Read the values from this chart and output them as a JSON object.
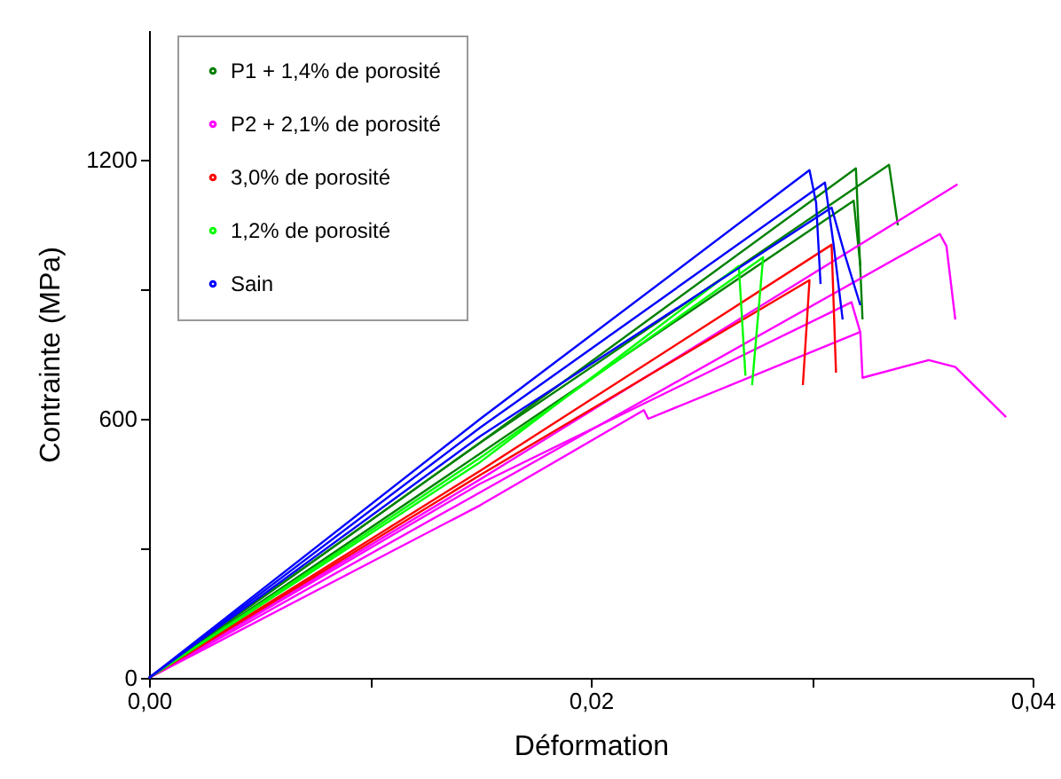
{
  "chart_data": {
    "type": "line",
    "xlabel": "Déformation",
    "ylabel": "Contrainte (MPa)",
    "xlim": [
      0,
      0.04
    ],
    "ylim": [
      0,
      1500
    ],
    "xticks": [
      {
        "value": 0,
        "label": "0,00"
      },
      {
        "value": 0.01,
        "label": null
      },
      {
        "value": 0.02,
        "label": "0,02"
      },
      {
        "value": 0.03,
        "label": null
      },
      {
        "value": 0.04,
        "label": "0,04"
      }
    ],
    "yticks": [
      0,
      {
        "value": 300,
        "label": null
      },
      600,
      {
        "value": 900,
        "label": null
      },
      1200
    ],
    "legend": "top left",
    "grid": false,
    "series": [
      {
        "name": "P1 + 1,4% de porosité",
        "color": "#008000",
        "x": [
          0,
          0.015,
          0.0335,
          0.0339
        ],
        "values": [
          0,
          545,
          1188,
          1048
        ]
      },
      {
        "color": "#008000",
        "x": [
          0,
          0.015,
          0.032,
          0.0323
        ],
        "values": [
          0,
          545,
          1180,
          830
        ]
      },
      {
        "color": "#008000",
        "x": [
          0,
          0.015,
          0.0319,
          0.0322
        ],
        "values": [
          0,
          520,
          1105,
          954
        ]
      },
      {
        "name": "P2 + 2,1% de porosité",
        "color": "#ff00ff",
        "x": [
          0,
          0.015,
          0.0366
        ],
        "values": [
          0,
          460,
          1143
        ]
      },
      {
        "color": "#ff00ff",
        "x": [
          0,
          0.015,
          0.0358,
          0.0361,
          0.0365
        ],
        "values": [
          0,
          430,
          1028,
          1000,
          830
        ]
      },
      {
        "color": "#ff00ff",
        "x": [
          0,
          0.015,
          0.0318,
          0.0322,
          0.0323,
          0.0353,
          0.0365,
          0.0388
        ],
        "values": [
          0,
          450,
          870,
          800,
          695,
          736,
          720,
          604
        ]
      },
      {
        "color": "#ff00ff",
        "x": [
          0,
          0.015,
          0.0224,
          0.0226,
          0.0322
        ],
        "values": [
          0,
          400,
          620,
          600,
          801
        ]
      },
      {
        "name": "3,0% de porosité",
        "color": "#ff0000",
        "x": [
          0,
          0.015,
          0.0309,
          0.0311
        ],
        "values": [
          0,
          480,
          1003,
          707
        ]
      },
      {
        "color": "#ff0000",
        "x": [
          0,
          0.015,
          0.0299,
          0.0296
        ],
        "values": [
          0,
          470,
          921,
          678
        ]
      },
      {
        "name": "1,2% de porosité",
        "color": "#00ff00",
        "x": [
          0,
          0.015,
          0.0278,
          0.0273
        ],
        "values": [
          0,
          510,
          974,
          678
        ]
      },
      {
        "color": "#00ff00",
        "x": [
          0,
          0.015,
          0.0267,
          0.027
        ],
        "values": [
          0,
          500,
          954,
          700
        ]
      },
      {
        "name": "Sain",
        "color": "#0000ff",
        "x": [
          0,
          0.015,
          0.0299,
          0.0302,
          0.0304
        ],
        "values": [
          0,
          600,
          1176,
          1100,
          912
        ]
      },
      {
        "color": "#0000ff",
        "x": [
          0,
          0.015,
          0.0306,
          0.031,
          0.0314
        ],
        "values": [
          0,
          580,
          1147,
          1000,
          830
        ]
      },
      {
        "color": "#0000ff",
        "x": [
          0,
          0.015,
          0.0309,
          0.0315,
          0.0322
        ],
        "values": [
          0,
          560,
          1089,
          980,
          863
        ]
      }
    ]
  }
}
